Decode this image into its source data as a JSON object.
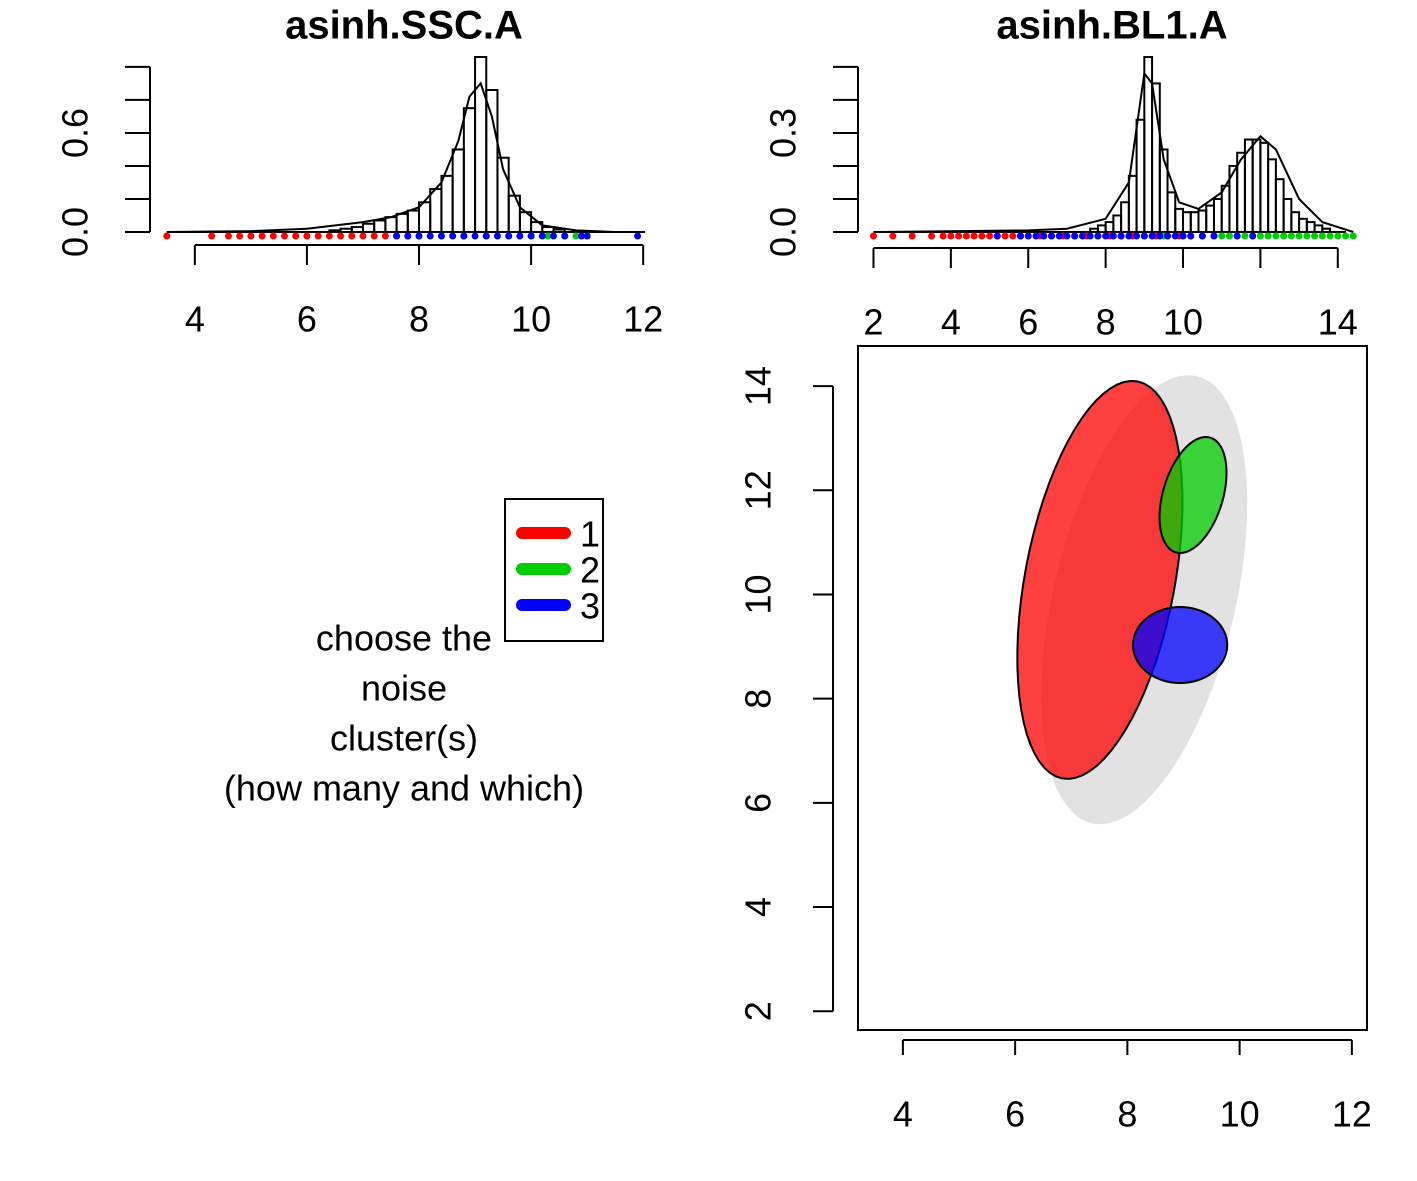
{
  "clusters": [
    {
      "name": "1",
      "color": "#ff0000"
    },
    {
      "name": "2",
      "color": "#00cd00"
    },
    {
      "name": "3",
      "color": "#0000ff"
    }
  ],
  "prompt": [
    "choose the",
    "noise",
    "cluster(s)",
    "(how many and which)"
  ],
  "chart_data": [
    {
      "type": "histogram",
      "title": "asinh.SSC.A",
      "bins": [
        6.4,
        6.6,
        6.8,
        7.0,
        7.2,
        7.4,
        7.6,
        7.8,
        8.0,
        8.2,
        8.4,
        8.6,
        8.8,
        9.0,
        9.2,
        9.4,
        9.6,
        9.8,
        10.0,
        10.2,
        10.4,
        10.6
      ],
      "counts": [
        0.01,
        0.02,
        0.03,
        0.05,
        0.07,
        0.09,
        0.11,
        0.13,
        0.18,
        0.26,
        0.34,
        0.5,
        0.75,
        1.06,
        0.86,
        0.45,
        0.22,
        0.12,
        0.06,
        0.03,
        0.015
      ],
      "density": {
        "x": [
          3.5,
          5,
          6,
          7,
          7.5,
          8,
          8.4,
          8.7,
          8.9,
          9.1,
          9.3,
          9.5,
          9.8,
          10.2,
          10.8,
          11.5
        ],
        "y": [
          0,
          0.005,
          0.02,
          0.06,
          0.09,
          0.15,
          0.3,
          0.55,
          0.82,
          0.9,
          0.7,
          0.38,
          0.15,
          0.04,
          0.01,
          0
        ]
      },
      "rug": [
        [
          3.5,
          4.3,
          4.6,
          4.8,
          5.0,
          5.2,
          5.4,
          5.6,
          5.8,
          6.0,
          6.2,
          6.4,
          6.6,
          6.8,
          7.0,
          7.2,
          7.4,
          7.6,
          7.8
        ],
        [
          8.0,
          8.4,
          8.8,
          9.2,
          9.6,
          10.0,
          10.3,
          10.6,
          10.8
        ],
        [
          7.6,
          7.8,
          8.0,
          8.2,
          8.4,
          8.6,
          8.8,
          9.0,
          9.2,
          9.4,
          9.6,
          9.8,
          10.0,
          10.2,
          10.4,
          10.6,
          10.9,
          11.0,
          11.9
        ]
      ],
      "xlim": [
        3.2,
        12.3
      ],
      "ylim": [
        0,
        1.06
      ],
      "xticks": [
        4,
        6,
        8,
        10,
        12
      ],
      "yticks": [
        {
          "value": 0,
          "label": "0.0"
        },
        {
          "value": 0.6,
          "label": "0.6"
        }
      ],
      "yticks_minor": [
        0.2,
        0.4,
        0.8,
        1.0
      ]
    },
    {
      "type": "histogram",
      "title": "asinh.BL1.A",
      "bins": [
        7.6,
        7.8,
        8.0,
        8.2,
        8.4,
        8.6,
        8.8,
        9.0,
        9.2,
        9.4,
        9.6,
        9.8,
        10.0,
        10.2,
        10.4,
        10.6,
        10.8,
        11.0,
        11.2,
        11.4,
        11.6,
        11.8,
        12.0,
        12.2,
        12.4,
        12.6,
        12.8,
        13.0,
        13.2,
        13.4,
        13.6,
        13.8
      ],
      "counts": [
        0.01,
        0.02,
        0.03,
        0.05,
        0.09,
        0.17,
        0.34,
        0.53,
        0.45,
        0.25,
        0.12,
        0.07,
        0.06,
        0.06,
        0.065,
        0.08,
        0.1,
        0.14,
        0.2,
        0.24,
        0.28,
        0.28,
        0.27,
        0.22,
        0.16,
        0.1,
        0.06,
        0.04,
        0.03,
        0.02,
        0.01
      ],
      "density": {
        "x": [
          2,
          6,
          7,
          8,
          8.6,
          9,
          9.2,
          9.5,
          9.9,
          10.4,
          11,
          11.5,
          12,
          12.4,
          13,
          13.6,
          14.4
        ],
        "y": [
          0,
          0.005,
          0.01,
          0.04,
          0.15,
          0.48,
          0.45,
          0.22,
          0.09,
          0.07,
          0.12,
          0.22,
          0.29,
          0.25,
          0.1,
          0.03,
          0
        ]
      },
      "rug": [
        [
          2.0,
          2.5,
          3.0,
          3.5,
          3.8,
          4.0,
          4.2,
          4.4,
          4.6,
          4.8,
          5.0,
          5.2,
          5.4,
          5.6,
          5.8,
          6.0,
          6.3,
          6.6,
          6.9,
          7.2,
          7.5,
          7.8,
          8.1,
          8.4,
          8.7,
          9.0,
          9.3,
          9.6,
          9.9,
          10.2,
          10.5,
          10.8
        ],
        [
          9.0,
          9.5,
          10.0,
          10.5,
          11.0,
          11.2,
          11.4,
          11.6,
          11.8,
          12.0,
          12.2,
          12.4,
          12.6,
          12.8,
          13.0,
          13.2,
          13.4,
          13.6,
          13.8,
          14.0,
          14.2,
          14.4
        ],
        [
          5.2,
          5.8,
          6.0,
          6.2,
          6.4,
          6.6,
          6.8,
          7.0,
          7.2,
          7.4,
          7.6,
          7.8,
          8.0,
          8.2,
          8.4,
          8.6,
          8.8,
          9.0,
          9.2,
          9.4,
          9.6,
          9.8,
          10.0,
          10.2,
          10.5,
          10.8,
          11.4,
          11.8
        ]
      ],
      "xlim": [
        1.6,
        14.6
      ],
      "ylim": [
        0,
        0.53
      ],
      "xticks": [
        2,
        4,
        6,
        8,
        10,
        14
      ],
      "xticks_minor": [
        12
      ],
      "yticks": [
        {
          "value": 0,
          "label": "0.0"
        },
        {
          "value": 0.3,
          "label": "0.3"
        }
      ],
      "yticks_minor": [
        0.1,
        0.2,
        0.4,
        0.5
      ]
    },
    {
      "type": "scatter",
      "xlim": [
        3.2,
        12.27
      ],
      "ylim": [
        1.64,
        14.77
      ],
      "xticks": [
        4,
        6,
        8,
        10,
        12
      ],
      "yticks": [
        2,
        4,
        6,
        8,
        10,
        12,
        14
      ],
      "background": {
        "color": "#bebebe",
        "center": [
          8.3,
          9.9
        ],
        "a": [
          0.9,
          4.3
        ],
        "b": [
          1.6,
          -0.3
        ]
      },
      "ellipses": [
        {
          "center": [
            7.51,
            10.28
          ],
          "a": [
            0.67,
            3.81
          ],
          "b": [
            1.31,
            -0.27
          ]
        },
        {
          "center": [
            9.17,
            11.91
          ],
          "a": [
            0.31,
            1.1
          ],
          "b": [
            0.51,
            -0.17
          ]
        },
        {
          "center": [
            8.94,
            9.03
          ],
          "a": [
            0.84,
            0
          ],
          "b": [
            0,
            0.73
          ]
        }
      ]
    }
  ]
}
